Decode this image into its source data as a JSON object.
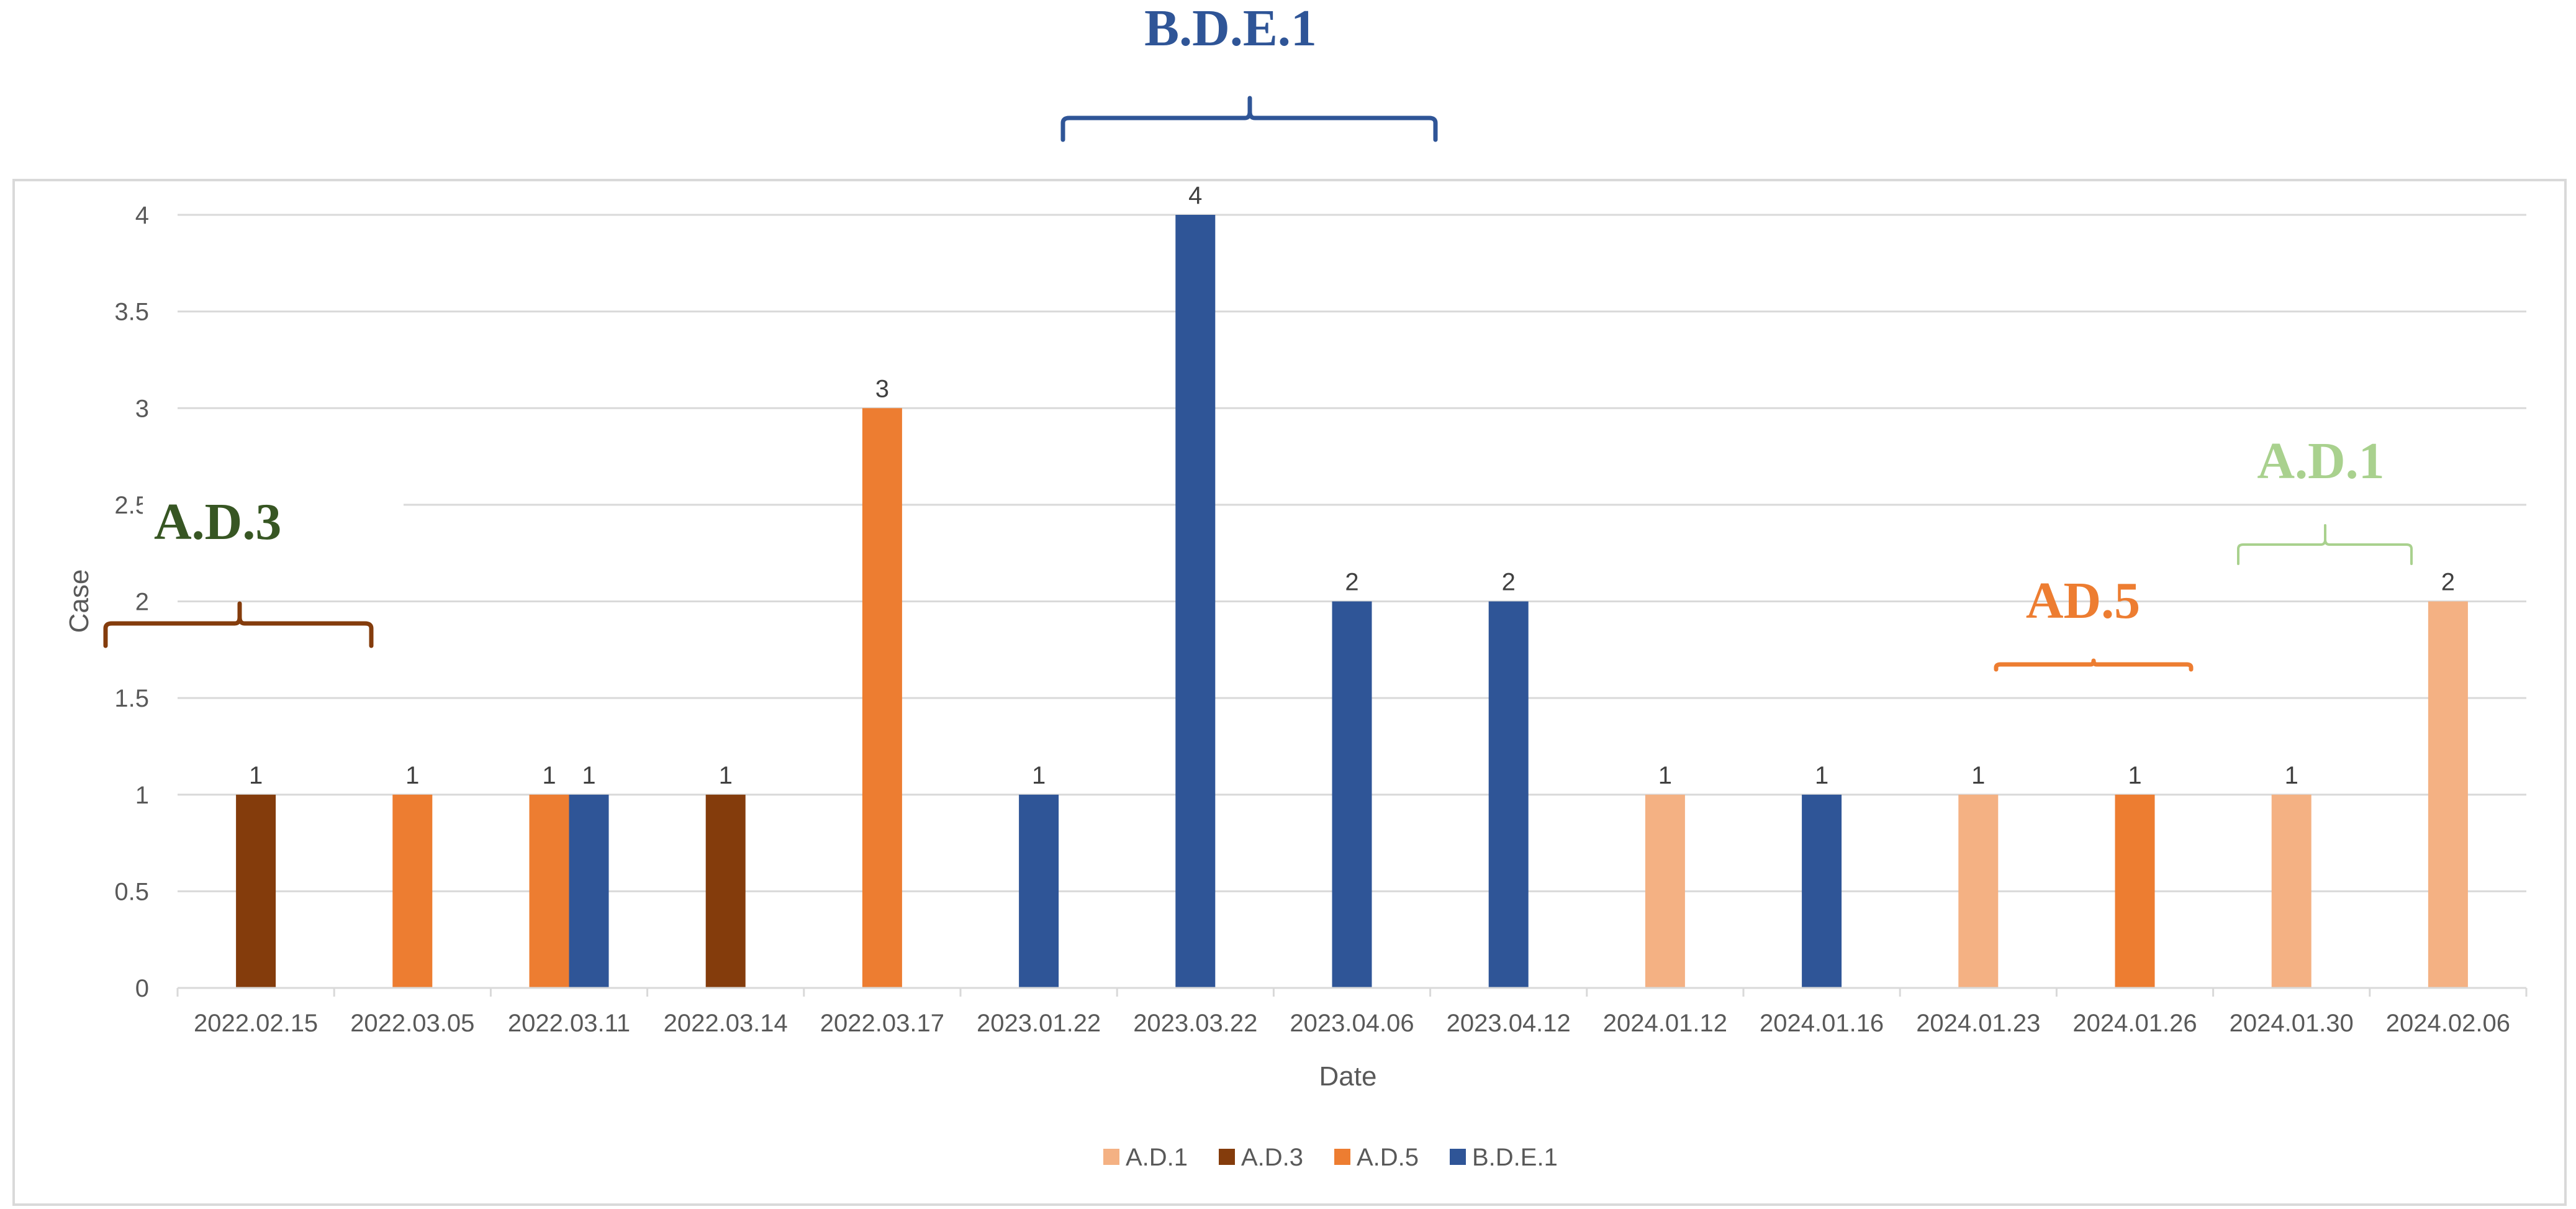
{
  "chart_data": {
    "type": "bar",
    "categories": [
      "2022.02.15",
      "2022.03.05",
      "2022.03.11",
      "2022.03.14",
      "2022.03.17",
      "2023.01.22",
      "2023.03.22",
      "2023.04.06",
      "2023.04.12",
      "2024.01.12",
      "2024.01.16",
      "2024.01.23",
      "2024.01.26",
      "2024.01.30",
      "2024.02.06"
    ],
    "series": [
      {
        "name": "A.D.1",
        "color": "#f4b183",
        "values": [
          null,
          null,
          null,
          null,
          null,
          null,
          null,
          null,
          null,
          1,
          null,
          1,
          null,
          1,
          2
        ]
      },
      {
        "name": "A.D.3",
        "color": "#843c0c",
        "values": [
          1,
          null,
          null,
          1,
          null,
          null,
          null,
          null,
          null,
          null,
          null,
          null,
          null,
          null,
          null
        ]
      },
      {
        "name": "A.D.5",
        "color": "#ed7d31",
        "values": [
          null,
          1,
          1,
          null,
          3,
          null,
          null,
          null,
          null,
          null,
          null,
          null,
          1,
          null,
          null
        ]
      },
      {
        "name": "B.D.E.1",
        "color": "#2f5597",
        "values": [
          null,
          null,
          1,
          null,
          null,
          1,
          4,
          2,
          2,
          null,
          1,
          null,
          null,
          null,
          null
        ]
      }
    ],
    "xlabel": "Date",
    "ylabel": "Case",
    "ylim": [
      0,
      4
    ],
    "yticks": [
      "0",
      "0.5",
      "1",
      "1.5",
      "2",
      "2.5",
      "3",
      "3.5",
      "4"
    ],
    "grid": true,
    "legend_position": "bottom",
    "annotations": [
      {
        "text": "B.D.E.1",
        "color": "#2f5597"
      },
      {
        "text": "A.D.3",
        "color": "#375623",
        "brace_color": "#843c0c"
      },
      {
        "text": "AD.5",
        "color": "#ed7d31"
      },
      {
        "text": "A.D.1",
        "color": "#a9d18e"
      }
    ]
  }
}
